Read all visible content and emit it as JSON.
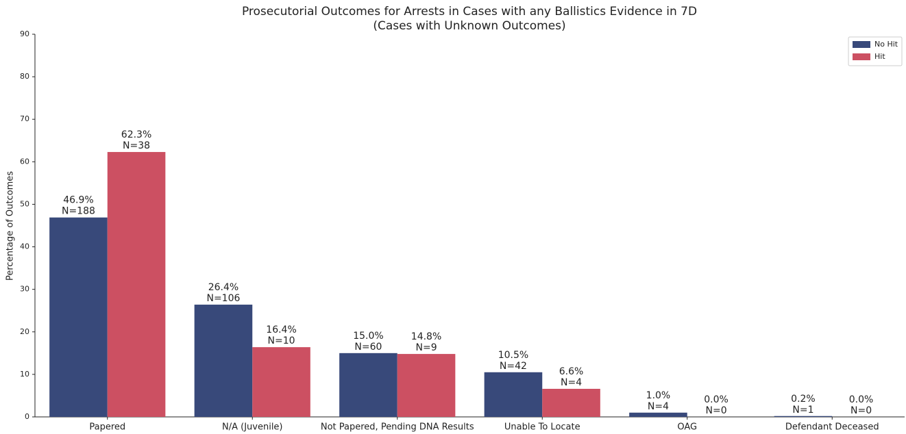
{
  "chart_data": {
    "type": "bar",
    "title": "Prosecutorial Outcomes for Arrests in Cases with any Ballistics Evidence in 7D",
    "subtitle": "(Cases with Unknown Outcomes)",
    "y_label": "Percentage of Outcomes",
    "categories": [
      "Papered",
      "N/A (Juvenile)",
      "Not Papered, Pending DNA Results",
      "Unable To Locate",
      "OAG",
      "Defendant Deceased"
    ],
    "series": [
      {
        "name": "No Hit",
        "color": "#38497a",
        "values": [
          46.9,
          26.4,
          15.0,
          10.5,
          1.0,
          0.2
        ],
        "value_labels": [
          "46.9%",
          "26.4%",
          "15.0%",
          "10.5%",
          "1.0%",
          "0.2%"
        ],
        "n_labels": [
          "N=188",
          "N=106",
          "N=60",
          "N=42",
          "N=4",
          "N=1"
        ]
      },
      {
        "name": "Hit",
        "color": "#cc5062",
        "values": [
          62.3,
          16.4,
          14.8,
          6.6,
          0.0,
          0.0
        ],
        "value_labels": [
          "62.3%",
          "16.4%",
          "14.8%",
          "6.6%",
          "0.0%",
          "0.0%"
        ],
        "n_labels": [
          "N=38",
          "N=10",
          "N=9",
          "N=4",
          "N=0",
          "N=0"
        ]
      }
    ],
    "ylim": [
      0,
      90
    ],
    "yticks": [
      0,
      10,
      20,
      30,
      40,
      50,
      60,
      70,
      80,
      90
    ],
    "grid": false,
    "legend": "upper right"
  }
}
